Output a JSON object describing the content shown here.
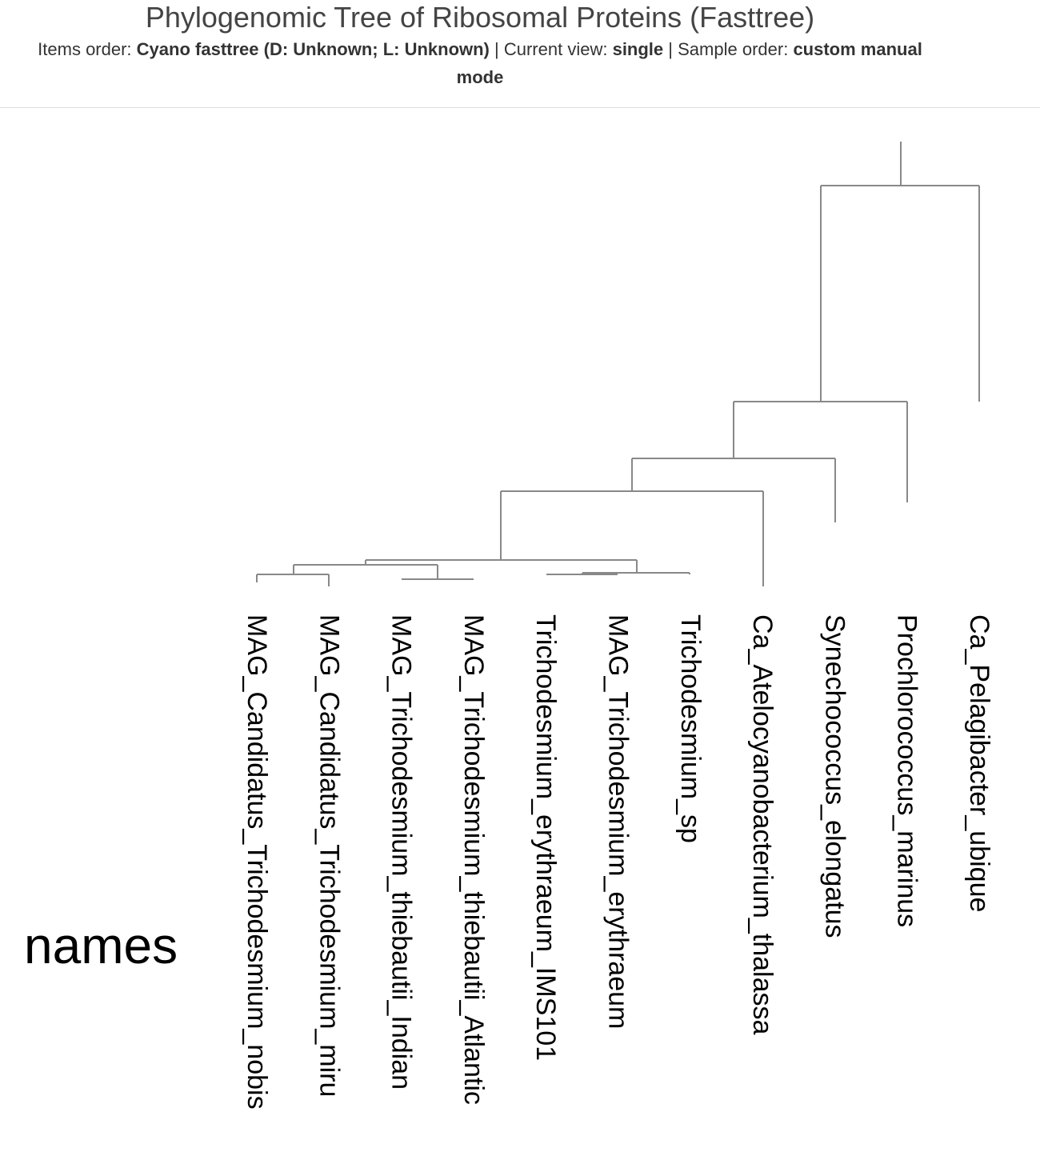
{
  "header": {
    "title": "Phylogenomic Tree of Ribosomal Proteins (Fasttree)",
    "separator": "|",
    "info": [
      {
        "label": "Items order:",
        "value": "Cyano fasttree (D: Unknown; L: Unknown)"
      },
      {
        "label": "Current view:",
        "value": "single"
      },
      {
        "label": "Sample order:",
        "value": "custom manual mode"
      }
    ]
  },
  "tree": {
    "layer_name": "names",
    "leaves": [
      "MAG_Candidatus_Trichodesmium_nobis",
      "MAG_Candidatus_Trichodesmium_miru",
      "MAG_Trichodesmium_thiebautii_Indian",
      "MAG_Trichodesmium_thiebautii_Atlantic",
      "Trichodesmium_erythraeum_IMS101",
      "MAG_Trichodesmium_erythraeum",
      "Trichodesmium_sp",
      "Ca_Atelocyanobacterium_thalassa",
      "Synechococcus_elongatus",
      "Prochlorococcus_marinus",
      "Ca_Pelagibacter_ubique"
    ]
  }
}
